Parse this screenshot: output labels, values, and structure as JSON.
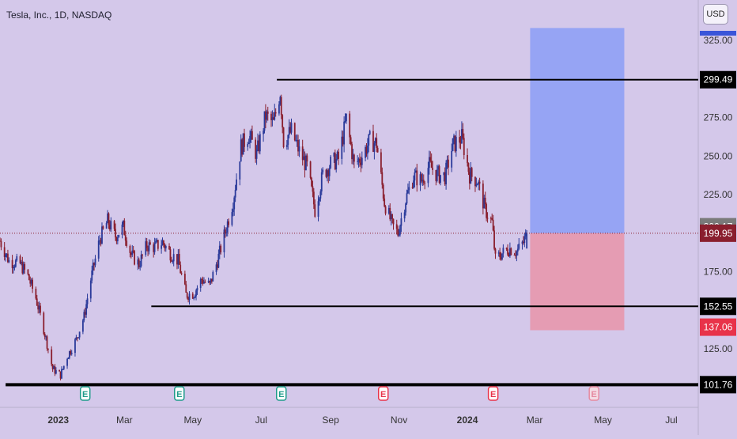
{
  "header": {
    "title": "Tesla, Inc., 1D, NASDAQ",
    "currency_button": "USD"
  },
  "colors": {
    "background": "#d4c8ea",
    "bull_candle": "#2a3a9a",
    "bear_candle": "#8a1f2e",
    "profit_zone": "#8fa0f5",
    "loss_zone": "#e797ad",
    "level_line": "#000000",
    "current_price_tag": "#8a1f2e",
    "prev_close_tag": "#7a7a7a",
    "stop_tag": "#e8334a",
    "earnings_past": "#1e9b8a",
    "earnings_future": "#e8334a"
  },
  "chart_data": {
    "type": "candlestick",
    "symbol": "Tesla, Inc.",
    "interval": "1D",
    "exchange": "NASDAQ",
    "currency": "USD",
    "ylim": [
      95,
      335
    ],
    "xlim": [
      "2022-11-10",
      "2024-07-25"
    ],
    "y_ticks": [
      125,
      175,
      225,
      250,
      275,
      325
    ],
    "y_tick_labels": [
      "125.00",
      "175.00",
      "225.00",
      "250.00",
      "275.00",
      "325.00"
    ],
    "x_ticks": [
      {
        "date": "2023-01-01",
        "label": "2023",
        "bold": true
      },
      {
        "date": "2023-03-01",
        "label": "Mar",
        "bold": false
      },
      {
        "date": "2023-05-01",
        "label": "May",
        "bold": false
      },
      {
        "date": "2023-07-01",
        "label": "Jul",
        "bold": false
      },
      {
        "date": "2023-09-01",
        "label": "Sep",
        "bold": false
      },
      {
        "date": "2023-11-01",
        "label": "Nov",
        "bold": false
      },
      {
        "date": "2024-01-01",
        "label": "2024",
        "bold": true
      },
      {
        "date": "2024-03-01",
        "label": "Mar",
        "bold": false
      },
      {
        "date": "2024-05-01",
        "label": "May",
        "bold": false
      },
      {
        "date": "2024-07-01",
        "label": "Jul",
        "bold": false
      }
    ],
    "close_points": [
      [
        "2022-11-10",
        195
      ],
      [
        "2022-11-18",
        182
      ],
      [
        "2022-11-28",
        180
      ],
      [
        "2022-12-05",
        172
      ],
      [
        "2022-12-12",
        158
      ],
      [
        "2022-12-19",
        138
      ],
      [
        "2022-12-27",
        112
      ],
      [
        "2023-01-03",
        108
      ],
      [
        "2023-01-09",
        120
      ],
      [
        "2023-01-17",
        131
      ],
      [
        "2023-01-24",
        146
      ],
      [
        "2023-01-30",
        170
      ],
      [
        "2023-02-07",
        196
      ],
      [
        "2023-02-14",
        208
      ],
      [
        "2023-02-21",
        198
      ],
      [
        "2023-02-28",
        204
      ],
      [
        "2023-03-07",
        186
      ],
      [
        "2023-03-14",
        180
      ],
      [
        "2023-03-21",
        192
      ],
      [
        "2023-03-28",
        191
      ],
      [
        "2023-04-04",
        194
      ],
      [
        "2023-04-11",
        187
      ],
      [
        "2023-04-18",
        182
      ],
      [
        "2023-04-25",
        160
      ],
      [
        "2023-05-02",
        161
      ],
      [
        "2023-05-09",
        170
      ],
      [
        "2023-05-16",
        166
      ],
      [
        "2023-05-23",
        182
      ],
      [
        "2023-05-30",
        201
      ],
      [
        "2023-06-06",
        221
      ],
      [
        "2023-06-13",
        256
      ],
      [
        "2023-06-20",
        264
      ],
      [
        "2023-06-27",
        251
      ],
      [
        "2023-07-05",
        276
      ],
      [
        "2023-07-12",
        271
      ],
      [
        "2023-07-18",
        292
      ],
      [
        "2023-07-21",
        260
      ],
      [
        "2023-07-28",
        266
      ],
      [
        "2023-08-04",
        253
      ],
      [
        "2023-08-11",
        243
      ],
      [
        "2023-08-18",
        215
      ],
      [
        "2023-08-25",
        238
      ],
      [
        "2023-09-01",
        245
      ],
      [
        "2023-09-08",
        248
      ],
      [
        "2023-09-15",
        274
      ],
      [
        "2023-09-22",
        244
      ],
      [
        "2023-09-29",
        250
      ],
      [
        "2023-10-06",
        260
      ],
      [
        "2023-10-12",
        258
      ],
      [
        "2023-10-19",
        220
      ],
      [
        "2023-10-26",
        205
      ],
      [
        "2023-10-31",
        200
      ],
      [
        "2023-11-07",
        222
      ],
      [
        "2023-11-14",
        237
      ],
      [
        "2023-11-21",
        234
      ],
      [
        "2023-11-28",
        244
      ],
      [
        "2023-12-05",
        238
      ],
      [
        "2023-12-12",
        237
      ],
      [
        "2023-12-19",
        257
      ],
      [
        "2023-12-27",
        262
      ],
      [
        "2024-01-03",
        238
      ],
      [
        "2024-01-10",
        234
      ],
      [
        "2024-01-17",
        215
      ],
      [
        "2024-01-23",
        207
      ],
      [
        "2024-01-26",
        183
      ],
      [
        "2024-02-01",
        187
      ],
      [
        "2024-02-08",
        190
      ],
      [
        "2024-02-14",
        188
      ],
      [
        "2024-02-20",
        194
      ],
      [
        "2024-02-23",
        199.95
      ]
    ],
    "horizontal_levels": [
      {
        "value": 299.49,
        "label": "299.49",
        "from": "2023-07-15"
      },
      {
        "value": 152.55,
        "label": "152.55",
        "from": "2023-03-25"
      },
      {
        "value": 101.76,
        "label": "101.76",
        "from": "2022-11-15"
      }
    ],
    "current_price": {
      "value": 199.95,
      "label": "199.95"
    },
    "previous_close": {
      "value": 200.17,
      "label": "200.17"
    },
    "position_tool": {
      "type": "long",
      "start": "2024-02-26",
      "end": "2024-05-20",
      "entry": 199.95,
      "target": 333,
      "stop": 137.06,
      "stop_label": "137.06"
    },
    "earnings": [
      {
        "date": "2023-01-25",
        "label": "E",
        "status": "reported"
      },
      {
        "date": "2023-04-19",
        "label": "E",
        "status": "reported"
      },
      {
        "date": "2023-07-19",
        "label": "E",
        "status": "reported"
      },
      {
        "date": "2023-10-18",
        "label": "E",
        "status": "reported_miss"
      },
      {
        "date": "2024-01-24",
        "label": "E",
        "status": "reported_miss"
      },
      {
        "date": "2024-04-23",
        "label": "E",
        "status": "upcoming"
      }
    ]
  }
}
